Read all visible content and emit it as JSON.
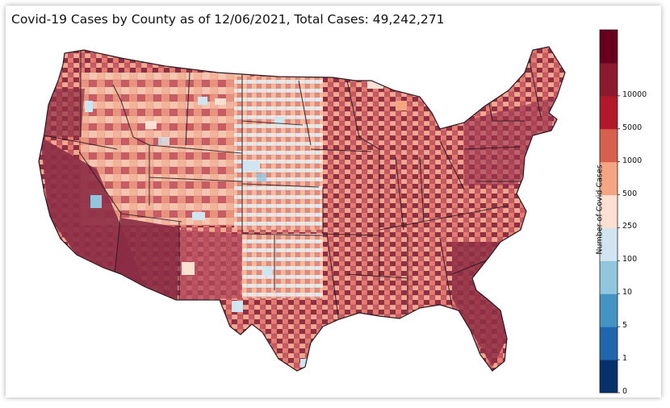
{
  "title": "Covid-19 Cases by County as of 12/06/2021, Total Cases: 49,242,271",
  "colorbar": {
    "label": "Number of Covid Cases",
    "bins": [
      {
        "tick": "0",
        "color": "#08306b"
      },
      {
        "tick": "1",
        "color": "#2166ac"
      },
      {
        "tick": "5",
        "color": "#4393c3"
      },
      {
        "tick": "10",
        "color": "#92c5de"
      },
      {
        "tick": "100",
        "color": "#d1e5f0"
      },
      {
        "tick": "250",
        "color": "#fde0d2"
      },
      {
        "tick": "500",
        "color": "#f4a582"
      },
      {
        "tick": "1000",
        "color": "#d6604d"
      },
      {
        "tick": "5000",
        "color": "#b2182b"
      },
      {
        "tick": "10000",
        "color": "#8b1a2e"
      },
      {
        "tick": "",
        "color": "#67001f"
      }
    ]
  }
}
